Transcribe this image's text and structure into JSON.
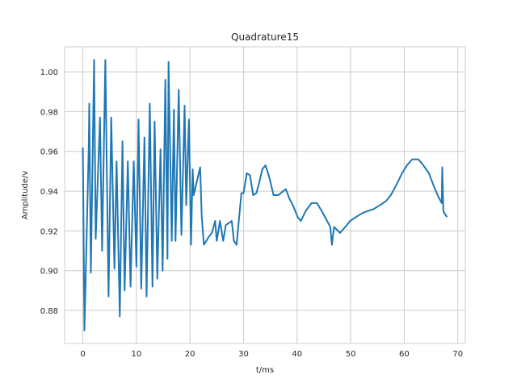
{
  "chart_data": {
    "type": "line",
    "title": "Quadrature15",
    "x_label": "t/ms",
    "y_label": "Amplitude/v",
    "x": [
      0,
      0.3,
      1.1,
      1.2,
      1.5,
      2.1,
      2.4,
      3.2,
      3.6,
      4.2,
      4.8,
      5.3,
      5.9,
      6.3,
      6.9,
      7.4,
      7.8,
      8.4,
      8.9,
      9.5,
      10.0,
      10.4,
      10.9,
      11.5,
      11.9,
      12.5,
      13.0,
      13.4,
      13.9,
      14.5,
      14.9,
      15.4,
      15.8,
      16.0,
      16.6,
      17.0,
      17.3,
      17.9,
      18.4,
      19.0,
      19.3,
      19.8,
      20.2,
      20.5,
      20.7,
      21.9,
      22.2,
      22.6,
      23.5,
      24.1,
      24.7,
      25.0,
      25.6,
      26.2,
      26.7,
      27.3,
      27.8,
      28.2,
      28.7,
      29.6,
      30.0,
      30.6,
      31.2,
      31.8,
      32.4,
      32.9,
      33.5,
      34.1,
      34.8,
      35.6,
      36.5,
      37.4,
      37.9,
      38.6,
      39.2,
      40.1,
      40.7,
      41.6,
      42.7,
      43.7,
      44.6,
      45.4,
      46.2,
      46.5,
      46.9,
      48.0,
      49.0,
      49.9,
      51.0,
      52.2,
      53.2,
      54.3,
      55.5,
      56.6,
      57.5,
      58.5,
      59.6,
      60.5,
      61.5,
      62.6,
      63.3,
      64.6,
      65.6,
      66.4,
      67.0,
      67.1,
      67.3,
      67.7,
      68.0
    ],
    "series": [
      {
        "color": "#1f77b4",
        "values": [
          0.962,
          0.87,
          0.962,
          0.984,
          0.899,
          1.006,
          0.916,
          0.977,
          0.91,
          1.006,
          0.887,
          0.977,
          0.901,
          0.955,
          0.877,
          0.965,
          0.89,
          0.955,
          0.892,
          0.955,
          0.902,
          0.976,
          0.891,
          0.967,
          0.887,
          0.984,
          0.892,
          0.975,
          0.896,
          0.961,
          0.9,
          0.996,
          0.906,
          1.005,
          0.915,
          0.981,
          0.915,
          0.991,
          0.918,
          0.983,
          0.933,
          0.976,
          0.913,
          0.951,
          0.938,
          0.952,
          0.927,
          0.913,
          0.917,
          0.919,
          0.925,
          0.915,
          0.925,
          0.915,
          0.923,
          0.924,
          0.925,
          0.915,
          0.913,
          0.939,
          0.939,
          0.949,
          0.948,
          0.938,
          0.939,
          0.944,
          0.951,
          0.953,
          0.947,
          0.938,
          0.938,
          0.94,
          0.941,
          0.936,
          0.933,
          0.927,
          0.925,
          0.93,
          0.934,
          0.934,
          0.93,
          0.926,
          0.922,
          0.913,
          0.922,
          0.919,
          0.922,
          0.925,
          0.927,
          0.929,
          0.93,
          0.931,
          0.933,
          0.935,
          0.938,
          0.943,
          0.949,
          0.953,
          0.956,
          0.956,
          0.954,
          0.949,
          0.942,
          0.937,
          0.934,
          0.952,
          0.93,
          0.928,
          0.927
        ]
      }
    ],
    "xlim": [
      -3.4,
      71.4
    ],
    "xticks": [
      0,
      10,
      20,
      30,
      40,
      50,
      60,
      70
    ],
    "ylim": [
      0.8634,
      1.0126
    ],
    "yticks": [
      0.88,
      {
        "value": 0.9,
        "label": "0.90"
      },
      0.92,
      0.94,
      0.96,
      0.98,
      {
        "value": 1,
        "label": "1.00"
      }
    ],
    "grid": true
  }
}
